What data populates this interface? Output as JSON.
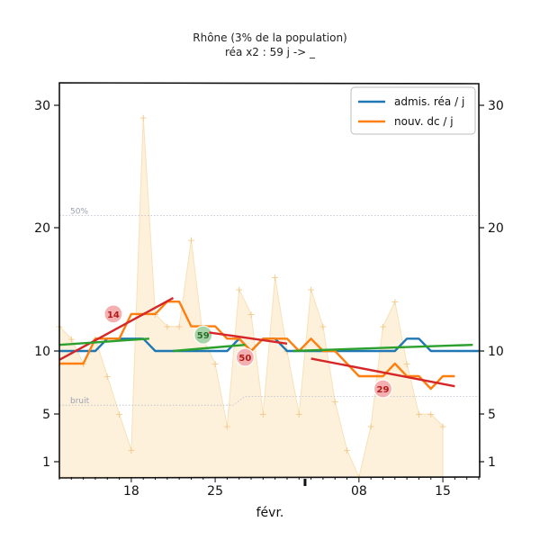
{
  "chart_data": {
    "type": "line",
    "title": "Rhône (3% de la population)",
    "subtitle": "réa x2 : 59 j -> _",
    "xlabel": "févr.",
    "ylabel": "",
    "x_tick_labels": [
      "18",
      "25",
      "08",
      "15"
    ],
    "y_ticks": [
      1,
      5,
      10,
      20,
      30
    ],
    "grid": false,
    "legend_position": "top-right",
    "colors": {
      "adm": "#1f77b4",
      "dc": "#ff7f0e",
      "trend_up": "#d62728",
      "trend_flat": "#2ca02c",
      "fill": "#fdf1dc"
    },
    "reference_lines": [
      {
        "label": "50%",
        "values": [
          21,
          21
        ]
      },
      {
        "label": "bruit",
        "values": [
          5.7,
          5.7,
          6.4,
          6.4
        ]
      }
    ],
    "series": [
      {
        "name": "admis. réa / j",
        "points": [
          [
            0,
            10
          ],
          [
            1,
            10
          ],
          [
            2,
            10
          ],
          [
            3,
            10
          ],
          [
            4,
            11
          ],
          [
            5,
            11
          ],
          [
            6,
            11
          ],
          [
            7,
            11
          ],
          [
            8,
            10
          ],
          [
            9,
            10
          ],
          [
            10,
            10
          ],
          [
            11,
            10
          ],
          [
            12,
            10
          ],
          [
            13,
            10
          ],
          [
            14,
            10
          ],
          [
            15,
            11
          ],
          [
            16,
            10
          ],
          [
            17,
            11
          ],
          [
            18,
            11
          ],
          [
            19,
            10
          ],
          [
            20,
            10
          ],
          [
            21,
            10
          ],
          [
            22,
            10
          ],
          [
            23,
            10
          ],
          [
            24,
            10
          ],
          [
            25,
            10
          ],
          [
            26,
            10
          ],
          [
            27,
            10
          ],
          [
            28,
            10
          ],
          [
            29,
            11
          ],
          [
            30,
            11
          ],
          [
            31,
            10
          ],
          [
            32,
            10
          ],
          [
            33,
            10
          ],
          [
            34,
            10
          ],
          [
            35,
            10
          ]
        ]
      },
      {
        "name": "nouv. dc / j",
        "points": [
          [
            0,
            9
          ],
          [
            1,
            9
          ],
          [
            2,
            9
          ],
          [
            3,
            11
          ],
          [
            4,
            11
          ],
          [
            5,
            11
          ],
          [
            6,
            13
          ],
          [
            7,
            13
          ],
          [
            8,
            13
          ],
          [
            9,
            14
          ],
          [
            10,
            14
          ],
          [
            11,
            12
          ],
          [
            12,
            12
          ],
          [
            13,
            12
          ],
          [
            14,
            11
          ],
          [
            15,
            11
          ],
          [
            16,
            10
          ],
          [
            17,
            11
          ],
          [
            18,
            11
          ],
          [
            19,
            11
          ],
          [
            20,
            10
          ],
          [
            21,
            11
          ],
          [
            22,
            10
          ],
          [
            23,
            10
          ],
          [
            24,
            9
          ],
          [
            25,
            8
          ],
          [
            26,
            8
          ],
          [
            27,
            8
          ],
          [
            28,
            9
          ],
          [
            29,
            8
          ],
          [
            30,
            8
          ],
          [
            31,
            7
          ],
          [
            32,
            8
          ],
          [
            33,
            8
          ]
        ]
      }
    ],
    "daily_raw": [
      12,
      11,
      9,
      11,
      8,
      5,
      2,
      29,
      13,
      12,
      12,
      19,
      11,
      9,
      4,
      15,
      13,
      5,
      16,
      10,
      5,
      15,
      12,
      6,
      2,
      0,
      4,
      12,
      14,
      9,
      5,
      5,
      4
    ],
    "trends": [
      {
        "color": "trend_up",
        "points": [
          [
            0,
            9.3
          ],
          [
            9.5,
            14.3
          ]
        ],
        "badge": "14",
        "badge_at": [
          4.5,
          13
        ]
      },
      {
        "color": "trend_flat",
        "points": [
          [
            0,
            10.5
          ],
          [
            7.5,
            11
          ]
        ],
        "badge": null
      },
      {
        "color": "trend_flat",
        "points": [
          [
            9.5,
            10
          ],
          [
            15.5,
            10.5
          ]
        ],
        "badge": "59",
        "badge_at": [
          12,
          11.3
        ]
      },
      {
        "color": "trend_up",
        "points": [
          [
            12.5,
            11.5
          ],
          [
            19,
            10.6
          ]
        ],
        "badge": "50",
        "badge_at": [
          15.5,
          9.5
        ]
      },
      {
        "color": "trend_flat",
        "points": [
          [
            19.5,
            10
          ],
          [
            34.5,
            10.5
          ]
        ],
        "badge": null
      },
      {
        "color": "trend_up",
        "points": [
          [
            21,
            9.4
          ],
          [
            33,
            7.2
          ]
        ],
        "badge": "29",
        "badge_at": [
          27,
          7
        ]
      }
    ]
  }
}
